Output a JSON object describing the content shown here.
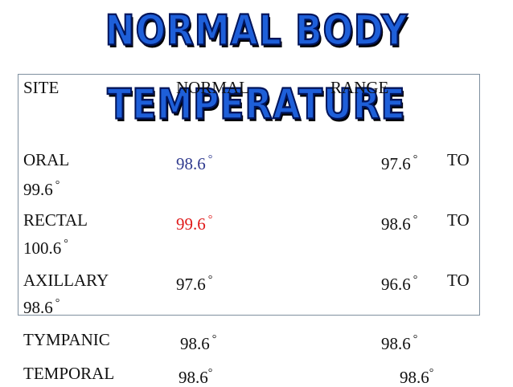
{
  "title": "NORMAL BODY TEMPERATURE",
  "header": {
    "site": "SITE",
    "normal": "NORMAL",
    "range": "RANGE"
  },
  "rows": [
    {
      "site": "ORAL",
      "normal": "98.6",
      "range_low": "97.6",
      "to": "TO",
      "range_high": "99.6",
      "normal_color": "#303b8f"
    },
    {
      "site": "RECTAL",
      "normal": "99.6",
      "range_low": "98.6",
      "to": "TO",
      "range_high": "100.6",
      "normal_color": "#e01a1a"
    },
    {
      "site": "AXILLARY",
      "normal": "97.6",
      "range_low": "96.6",
      "to": "TO",
      "range_high": "98.6",
      "normal_color": "#111111"
    },
    {
      "site": "TYMPANIC",
      "normal": "98.6",
      "range_low": "98.6"
    },
    {
      "site": "TEMPORAL",
      "normal": "98.6",
      "range_low": "98.6"
    }
  ],
  "degree_symbol": "°",
  "colors": {
    "title_fill": "#1e5fd9",
    "title_outline": "#00145a",
    "box_border": "#7f8f9f"
  }
}
